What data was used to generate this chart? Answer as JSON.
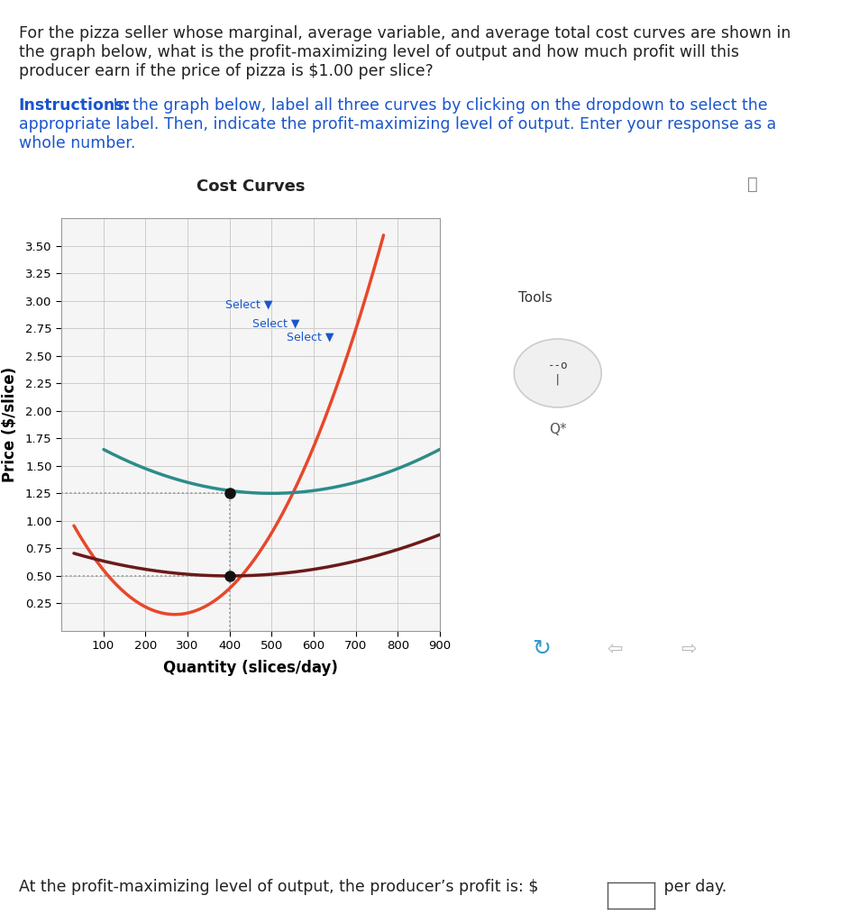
{
  "title": "Cost Curves",
  "xlabel": "Quantity (slices/day)",
  "ylabel": "Price ($/slice)",
  "q_text1": "For the pizza seller whose marginal, average variable, and average total cost curves are shown in",
  "q_text2": "the graph below, what is the profit-maximizing level of output and how much profit will this",
  "q_text3": "producer earn if the price of pizza is $1.00 per slice?",
  "instr_bold": "Instructions:",
  "instr_rest1": " In the graph below, label all three curves by clicking on the dropdown to select the",
  "instr_rest2": "appropriate label. Then, indicate the profit-maximizing level of output. Enter your response as a",
  "instr_rest3": "whole number.",
  "bottom_text": "At the profit-maximizing level of output, the producer’s profit is: $",
  "bottom_text2": " per day.",
  "xlim": [
    0,
    900
  ],
  "ylim": [
    0,
    3.75
  ],
  "yticks": [
    0.25,
    0.5,
    0.75,
    1.0,
    1.25,
    1.5,
    1.75,
    2.0,
    2.25,
    2.5,
    2.75,
    3.0,
    3.25,
    3.5
  ],
  "xticks": [
    100,
    200,
    300,
    400,
    500,
    600,
    700,
    800,
    900
  ],
  "mc_color": "#E8472A",
  "atc_color": "#2D8B8B",
  "avc_color": "#6B1A1A",
  "dot_color": "#111111",
  "dotted_line_color": "#999999",
  "background_color": "#ffffff",
  "grid_color": "#cccccc",
  "plot_bg": "#f5f5f5",
  "dot1_x": 400,
  "dot1_y": 1.25,
  "dot2_x": 400,
  "dot2_y": 0.5,
  "select_color": "#1a55cc",
  "tools_border_color": "#bbbbbb",
  "toolbar_bg": "#f0f0ec"
}
